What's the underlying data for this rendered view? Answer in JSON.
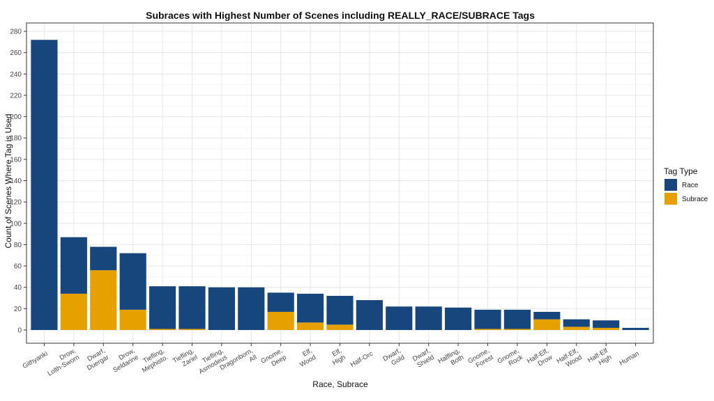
{
  "chart_data": {
    "type": "bar",
    "stacked": true,
    "title": "Subraces with Highest Number of Scenes including REALLY_RACE/SUBRACE Tags",
    "xlabel": "Race, Subrace",
    "ylabel": "Count of Scenes Where Tag is Used",
    "ylim": [
      0,
      280
    ],
    "yticks": [
      0,
      20,
      40,
      60,
      80,
      100,
      120,
      140,
      160,
      180,
      200,
      220,
      240,
      260,
      280
    ],
    "grid": true,
    "legend": {
      "title": "Tag Type",
      "position": "right"
    },
    "categories": [
      [
        "Githyanki"
      ],
      [
        "Drow,",
        "Lolth-Sworn"
      ],
      [
        "Dwarf,",
        "Duergar"
      ],
      [
        "Drow,",
        "Seldarine"
      ],
      [
        "Tiefling,",
        "Mephisto."
      ],
      [
        "Tiefling,",
        "Zariel"
      ],
      [
        "Tiefling,",
        "Asmodeus"
      ],
      [
        "Dragonborn,",
        "All"
      ],
      [
        "Gnome,",
        "Deep"
      ],
      [
        "Elf,",
        "Wood"
      ],
      [
        "Elf,",
        "High"
      ],
      [
        "Half-Orc"
      ],
      [
        "Dwarf,",
        "Gold"
      ],
      [
        "Dwarf,",
        "Shield"
      ],
      [
        "Halfling,",
        "Both"
      ],
      [
        "Gnome,",
        "Forest"
      ],
      [
        "Gnome,",
        "Rock"
      ],
      [
        "Half-Elf,",
        "Drow"
      ],
      [
        "Half-Elf,",
        "Wood"
      ],
      [
        "Half-Elf",
        "High"
      ],
      [
        "Human"
      ]
    ],
    "series": [
      {
        "name": "Race",
        "color": "#16467c",
        "values": [
          272,
          53,
          22,
          53,
          40,
          40,
          40,
          40,
          18,
          27,
          27,
          28,
          22,
          22,
          21,
          18,
          18,
          7,
          7,
          7,
          2
        ]
      },
      {
        "name": "Subrace",
        "color": "#e6a000",
        "values": [
          0,
          34,
          56,
          19,
          1,
          1,
          0,
          0,
          17,
          7,
          5,
          0,
          0,
          0,
          0,
          1,
          1,
          10,
          3,
          2,
          0
        ]
      }
    ]
  }
}
